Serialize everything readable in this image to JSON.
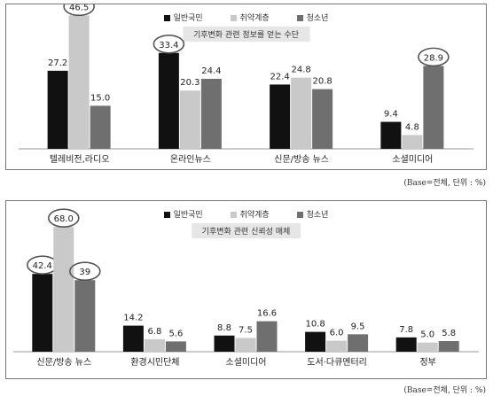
{
  "colors": {
    "일반국민": "#111111",
    "취약계층": "#c9c9c9",
    "청소년": "#6f6f6f",
    "highlight": "#555555"
  },
  "chart_data": [
    {
      "type": "bar",
      "title": "기후변화 관련 정보를 얻는 수단",
      "categories": [
        "텔레비전,라디오",
        "온라인뉴스",
        "신문/방송 뉴스",
        "소셜미디어"
      ],
      "series": [
        {
          "name": "일반국민",
          "values": [
            27.2,
            33.4,
            22.4,
            9.4
          ]
        },
        {
          "name": "취약계층",
          "values": [
            46.5,
            20.3,
            24.8,
            4.8
          ]
        },
        {
          "name": "청소년",
          "values": [
            15.0,
            24.4,
            20.8,
            28.9
          ]
        }
      ],
      "value_labels": [
        [
          "27.2",
          "46.5",
          "15.0"
        ],
        [
          "33.4",
          "20.3",
          "24.4"
        ],
        [
          "22.4",
          "24.8",
          "20.8"
        ],
        [
          "9.4",
          "4.8",
          "28.9"
        ]
      ],
      "circled": [
        [
          0,
          1
        ],
        [
          1,
          0
        ],
        [
          3,
          2
        ]
      ],
      "ylim": [
        0,
        50
      ],
      "legend": "top",
      "note": "(Base=전체, 단위 : %)"
    },
    {
      "type": "bar",
      "title": "기후변화 관련 신뢰성 매체",
      "categories": [
        "신문/방송 뉴스",
        "환경시민단체",
        "소셜미디어",
        "도서·다큐멘터리",
        "정부"
      ],
      "series": [
        {
          "name": "일반국민",
          "values": [
            42.4,
            14.2,
            8.8,
            10.8,
            7.8
          ]
        },
        {
          "name": "취약계층",
          "values": [
            68.0,
            6.8,
            7.5,
            6.0,
            5.0
          ]
        },
        {
          "name": "청소년",
          "values": [
            39.0,
            5.6,
            16.6,
            9.5,
            5.8
          ]
        }
      ],
      "value_labels": [
        [
          "42.4",
          "68.0",
          "39"
        ],
        [
          "14.2",
          "6.8",
          "5.6"
        ],
        [
          "8.8",
          "7.5",
          "16.6"
        ],
        [
          "10.8",
          "6.0",
          "9.5"
        ],
        [
          "7.8",
          "5.0",
          "5.8"
        ]
      ],
      "circled": [
        [
          0,
          0
        ],
        [
          0,
          1
        ],
        [
          0,
          2
        ]
      ],
      "ylim": [
        0,
        70
      ],
      "legend": "top",
      "note": "(Base=전체, 단위 : %)"
    }
  ]
}
